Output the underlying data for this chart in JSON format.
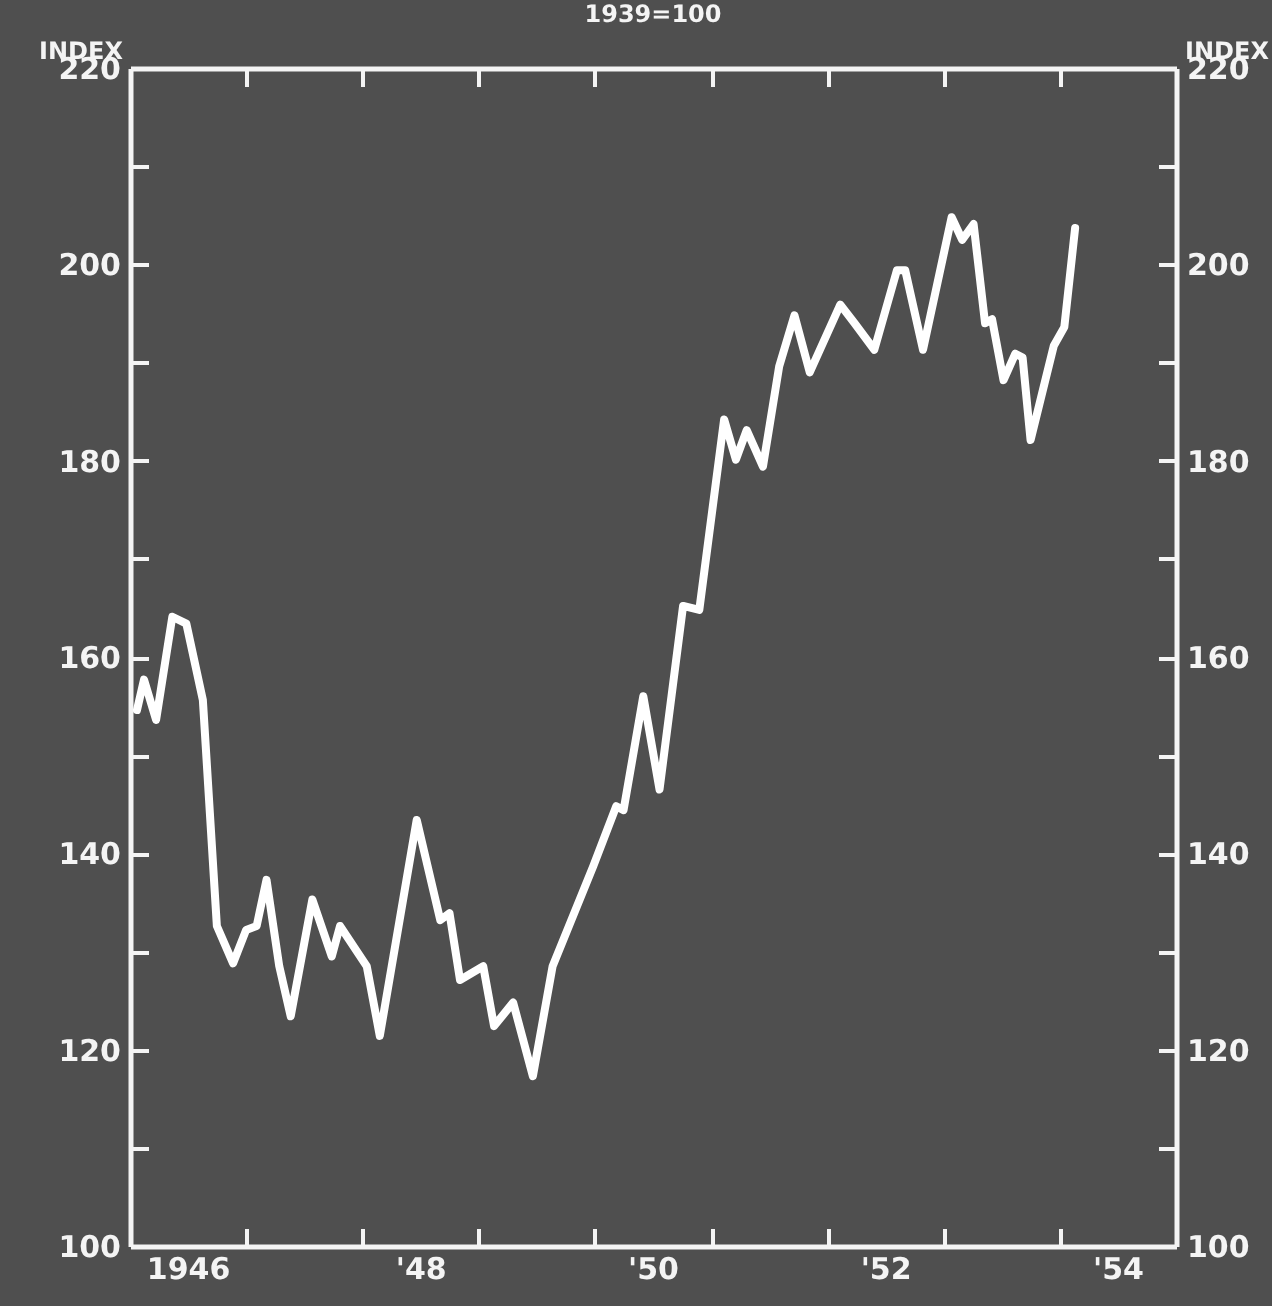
{
  "chart_data": {
    "type": "line",
    "title": "1939=100",
    "ylabel": "INDEX",
    "y2label": "INDEX",
    "x": [
      "1946-01-23",
      "1946-02-14",
      "1946-03-24",
      "1946-05-14",
      "1946-06-27",
      "1946-08-18",
      "1946-10-01",
      "1946-11-21",
      "1947-01-01",
      "1947-02-03",
      "1947-03-06",
      "1947-04-15",
      "1947-05-21",
      "1947-07-28",
      "1947-09-27",
      "1947-10-23",
      "1948-01-15",
      "1948-02-25",
      "1948-06-20",
      "1948-09-02",
      "1948-10-01",
      "1948-11-03",
      "1949-01-15",
      "1949-02-18",
      "1949-04-19",
      "1949-06-20",
      "1949-08-21",
      "1949-12-27",
      "1950-03-09",
      "1950-04-01",
      "1950-06-02",
      "1950-07-23",
      "1950-10-05",
      "1950-11-25",
      "1951-02-11",
      "1951-03-20",
      "1951-04-23",
      "1951-06-13",
      "1951-08-03",
      "1951-09-20",
      "1951-11-07",
      "1952-02-11",
      "1952-03-27",
      "1952-05-28",
      "1952-08-07",
      "1952-09-02",
      "1952-10-28",
      "1953-01-26",
      "1953-02-28",
      "1953-04-05",
      "1953-05-11",
      "1953-06-02",
      "1953-07-08",
      "1953-08-14",
      "1953-09-06",
      "1953-10-01",
      "1953-12-13",
      "1954-01-15",
      "1954-02-18"
    ],
    "series": [
      {
        "color": "#ffffff",
        "values": [
          154.6,
          157.7,
          153.6,
          164.1,
          163.4,
          155.6,
          132.6,
          128.8,
          132.2,
          132.6,
          137.3,
          128.5,
          123.4,
          135.3,
          129.5,
          132.6,
          128.5,
          121.4,
          143.4,
          133.2,
          133.9,
          127.1,
          128.5,
          122.4,
          124.8,
          117.3,
          128.5,
          138.7,
          144.8,
          144.4,
          156,
          146.5,
          165.2,
          164.8,
          184.2,
          180.1,
          183.1,
          179.4,
          189.6,
          194.8,
          189,
          195.9,
          194,
          191.3,
          199.4,
          199.4,
          191.3,
          204.8,
          202.5,
          204.1,
          194,
          194.4,
          188.2,
          190.9,
          190.5,
          182.1,
          191.7,
          193.6,
          203.7
        ]
      }
    ],
    "xlim": [
      "1946",
      "1955"
    ],
    "xticks": [
      {
        "value": "1947",
        "label": null
      },
      {
        "value": "1948",
        "label": null
      },
      {
        "value": "1949",
        "label": null
      },
      {
        "value": "1950",
        "label": null
      },
      {
        "value": "1951",
        "label": null
      },
      {
        "value": "1952",
        "label": null
      },
      {
        "value": "1953",
        "label": null
      },
      {
        "value": "1954",
        "label": null
      },
      {
        "value": "1946-07",
        "label": "1946"
      },
      {
        "value": "1948-07",
        "label": "'48"
      },
      {
        "value": "1950-07",
        "label": "'50"
      },
      {
        "value": "1952-07",
        "label": "'52"
      },
      {
        "value": "1954-07",
        "label": "'54"
      }
    ],
    "ylim": [
      100,
      220
    ],
    "yticks": [
      100,
      {
        "value": 110,
        "label": null
      },
      120,
      {
        "value": 130,
        "label": null
      },
      140,
      {
        "value": 150,
        "label": null
      },
      160,
      {
        "value": 170,
        "label": null
      },
      180,
      {
        "value": 190,
        "label": null
      },
      200,
      {
        "value": 210,
        "label": null
      },
      220
    ],
    "y2lim": [
      100,
      220
    ],
    "y2ticks": [
      100,
      {
        "value": 110,
        "label": null
      },
      120,
      {
        "value": 130,
        "label": null
      },
      140,
      {
        "value": 150,
        "label": null
      },
      160,
      {
        "value": 170,
        "label": null
      },
      180,
      {
        "value": 190,
        "label": null
      },
      200,
      {
        "value": 210,
        "label": null
      },
      220
    ]
  }
}
